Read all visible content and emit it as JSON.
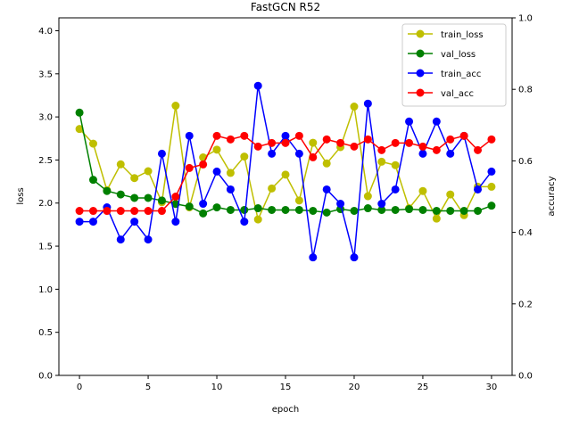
{
  "chart_data": {
    "type": "line",
    "title": "FastGCN R52",
    "xlabel": "epoch",
    "ylabel": "loss",
    "y2label": "accuracy",
    "xlim": [
      -1.5,
      31.5
    ],
    "ylim": [
      0,
      4.15
    ],
    "y2lim": [
      0,
      1.0
    ],
    "xticks": [
      0,
      5,
      10,
      15,
      20,
      25,
      30
    ],
    "yticks": [
      0.0,
      0.5,
      1.0,
      1.5,
      2.0,
      2.5,
      3.0,
      3.5,
      4.0
    ],
    "y2ticks": [
      0.0,
      0.2,
      0.4,
      0.6,
      0.8,
      1.0
    ],
    "grid": false,
    "legend_position": "top-right",
    "x": [
      0,
      1,
      2,
      3,
      4,
      5,
      6,
      7,
      8,
      9,
      10,
      11,
      12,
      13,
      14,
      15,
      16,
      17,
      18,
      19,
      20,
      21,
      22,
      23,
      24,
      25,
      26,
      27,
      28,
      29,
      30
    ],
    "series": [
      {
        "name": "train_loss",
        "axis": "left",
        "color": "#bfbf00",
        "values": [
          2.86,
          2.69,
          2.15,
          2.45,
          2.29,
          2.37,
          2.01,
          3.13,
          1.95,
          2.53,
          2.62,
          2.35,
          2.54,
          1.81,
          2.17,
          2.33,
          2.03,
          2.7,
          2.46,
          2.65,
          3.12,
          2.08,
          2.48,
          2.44,
          1.94,
          2.14,
          1.82,
          2.1,
          1.86,
          2.19,
          2.19
        ]
      },
      {
        "name": "val_loss",
        "axis": "left",
        "color": "#008000",
        "values": [
          3.05,
          2.27,
          2.14,
          2.1,
          2.06,
          2.06,
          2.03,
          1.99,
          1.96,
          1.88,
          1.95,
          1.92,
          1.92,
          1.94,
          1.92,
          1.92,
          1.92,
          1.91,
          1.89,
          1.93,
          1.91,
          1.94,
          1.92,
          1.92,
          1.93,
          1.92,
          1.91,
          1.91,
          1.91,
          1.91,
          1.97
        ]
      },
      {
        "name": "train_acc",
        "axis": "right",
        "color": "#0000ff",
        "values": [
          0.43,
          0.43,
          0.47,
          0.38,
          0.43,
          0.38,
          0.62,
          0.43,
          0.67,
          0.48,
          0.57,
          0.52,
          0.43,
          0.81,
          0.62,
          0.67,
          0.62,
          0.33,
          0.52,
          0.48,
          0.33,
          0.76,
          0.48,
          0.52,
          0.71,
          0.62,
          0.71,
          0.62,
          0.67,
          0.52,
          0.57
        ]
      },
      {
        "name": "val_acc",
        "axis": "right",
        "color": "#ff0000",
        "values": [
          0.46,
          0.46,
          0.46,
          0.46,
          0.46,
          0.46,
          0.46,
          0.5,
          0.58,
          0.59,
          0.67,
          0.66,
          0.67,
          0.64,
          0.65,
          0.65,
          0.67,
          0.61,
          0.66,
          0.65,
          0.64,
          0.66,
          0.63,
          0.65,
          0.65,
          0.64,
          0.63,
          0.66,
          0.67,
          0.63,
          0.66
        ]
      }
    ]
  }
}
